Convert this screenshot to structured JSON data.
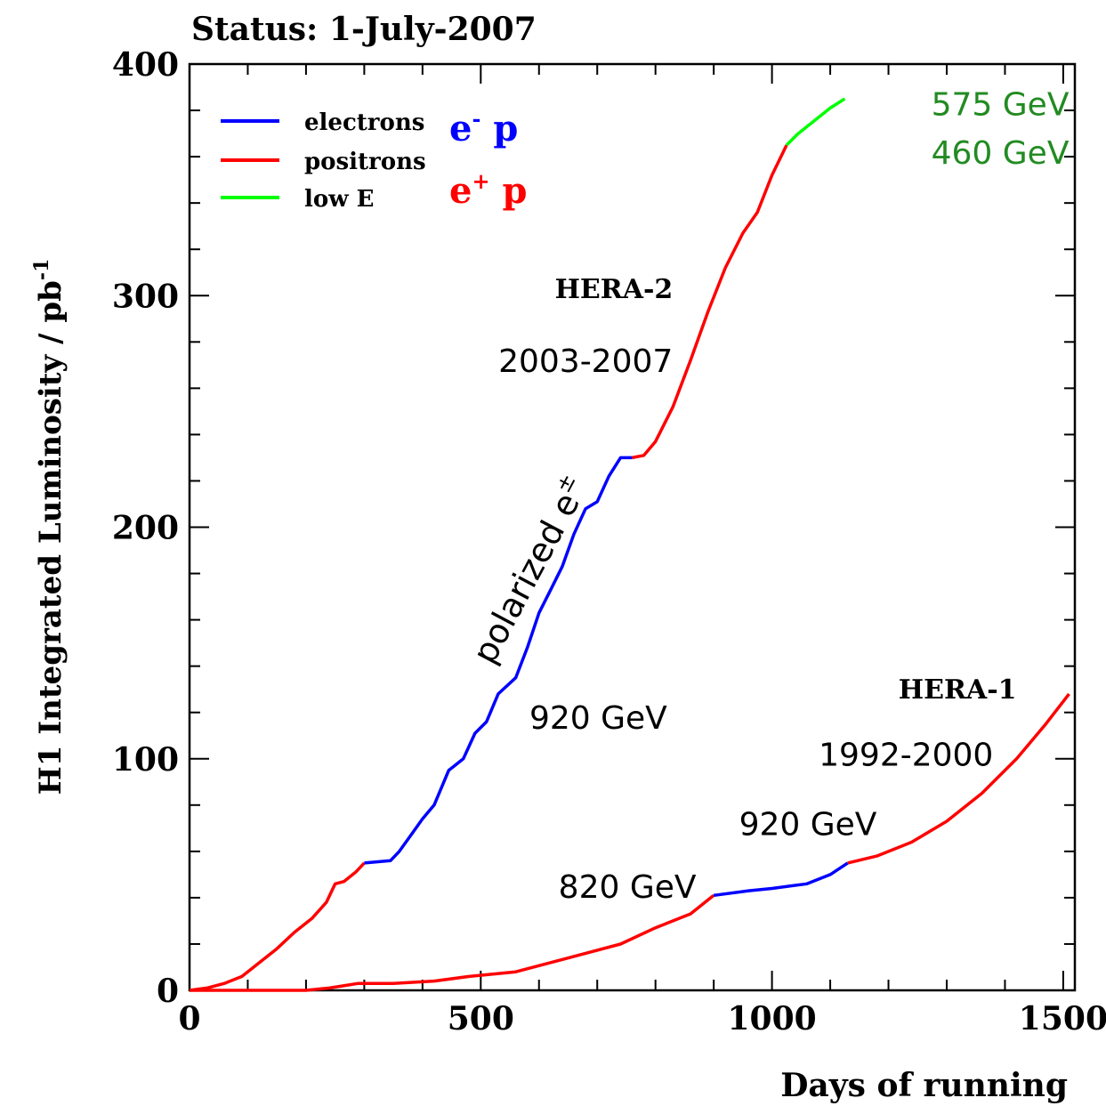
{
  "chart_data": {
    "type": "line",
    "status_text": "Status:  1-July-2007",
    "xlabel": "Days of running",
    "ylabel": "H1 Integrated Luminosity / pb",
    "ylabel_sup": "-1",
    "xlim": [
      0,
      1520
    ],
    "ylim": [
      0,
      400
    ],
    "x_ticks": [
      0,
      500,
      1000,
      1500
    ],
    "y_ticks": [
      0,
      100,
      200,
      300,
      400
    ],
    "x_minor_step": 100,
    "y_minor_step": 20,
    "colors": {
      "electrons": "#0000ff",
      "positrons": "#ff0000",
      "lowE": "#00ff00",
      "axis": "#000000",
      "green_text": "#228b22"
    },
    "legend": [
      {
        "label": "electrons",
        "color": "#0000ff"
      },
      {
        "label": "positrons",
        "color": "#ff0000"
      },
      {
        "label": "low E",
        "color": "#00ff00"
      }
    ],
    "legend_placement": "top-left",
    "legend_tags": [
      {
        "base": "e",
        "sup": "-",
        "suffix": " p",
        "color": "#0000ff"
      },
      {
        "base": "e",
        "sup": "+",
        "suffix": " p",
        "color": "#ff0000"
      }
    ],
    "series": [
      {
        "name": "HERA-2 positrons (early)",
        "color": "#ff0000",
        "points": [
          [
            0,
            0
          ],
          [
            30,
            1
          ],
          [
            60,
            3
          ],
          [
            90,
            6
          ],
          [
            120,
            12
          ],
          [
            150,
            18
          ],
          [
            180,
            25
          ],
          [
            210,
            31
          ],
          [
            235,
            38
          ],
          [
            250,
            46
          ],
          [
            265,
            47
          ],
          [
            285,
            51
          ],
          [
            300,
            55
          ]
        ]
      },
      {
        "name": "HERA-2 electrons",
        "color": "#0000ff",
        "points": [
          [
            300,
            55
          ],
          [
            345,
            56
          ],
          [
            360,
            60
          ],
          [
            380,
            67
          ],
          [
            400,
            74
          ],
          [
            420,
            80
          ],
          [
            445,
            95
          ],
          [
            470,
            100
          ],
          [
            490,
            111
          ],
          [
            510,
            116
          ],
          [
            530,
            128
          ],
          [
            560,
            135
          ],
          [
            580,
            148
          ],
          [
            600,
            163
          ],
          [
            620,
            173
          ],
          [
            640,
            183
          ],
          [
            660,
            197
          ],
          [
            680,
            208
          ],
          [
            700,
            211
          ],
          [
            720,
            222
          ],
          [
            740,
            230
          ],
          [
            760,
            230
          ]
        ]
      },
      {
        "name": "HERA-2 positrons",
        "color": "#ff0000",
        "points": [
          [
            760,
            230
          ],
          [
            780,
            231
          ],
          [
            800,
            237
          ],
          [
            830,
            252
          ],
          [
            860,
            272
          ],
          [
            890,
            293
          ],
          [
            920,
            312
          ],
          [
            950,
            327
          ],
          [
            975,
            336
          ],
          [
            1000,
            352
          ],
          [
            1025,
            365
          ]
        ]
      },
      {
        "name": "HERA-2 low E",
        "color": "#00ff00",
        "points": [
          [
            1025,
            365
          ],
          [
            1045,
            370
          ],
          [
            1070,
            375
          ],
          [
            1100,
            381
          ],
          [
            1125,
            385
          ]
        ]
      },
      {
        "name": "HERA-1 positrons (820 GeV)",
        "color": "#ff0000",
        "points": [
          [
            0,
            0
          ],
          [
            100,
            0
          ],
          [
            200,
            0
          ],
          [
            240,
            1
          ],
          [
            290,
            3
          ],
          [
            350,
            3
          ],
          [
            420,
            4
          ],
          [
            480,
            6
          ],
          [
            560,
            8
          ],
          [
            620,
            12
          ],
          [
            680,
            16
          ],
          [
            740,
            20
          ],
          [
            800,
            27
          ],
          [
            860,
            33
          ],
          [
            900,
            41
          ]
        ]
      },
      {
        "name": "HERA-1 electrons",
        "color": "#0000ff",
        "points": [
          [
            900,
            41
          ],
          [
            960,
            43
          ],
          [
            1000,
            44
          ],
          [
            1060,
            46
          ],
          [
            1100,
            50
          ],
          [
            1130,
            55
          ]
        ]
      },
      {
        "name": "HERA-1 positrons (920 GeV)",
        "color": "#ff0000",
        "points": [
          [
            1130,
            55
          ],
          [
            1180,
            58
          ],
          [
            1240,
            64
          ],
          [
            1300,
            73
          ],
          [
            1360,
            85
          ],
          [
            1420,
            100
          ],
          [
            1470,
            115
          ],
          [
            1510,
            128
          ]
        ]
      }
    ],
    "annotations": [
      {
        "text": "HERA-2",
        "x": 830,
        "y": 299,
        "font": "serif",
        "size": 30,
        "weight": "bold",
        "color": "#000000"
      },
      {
        "text": "2003-2007",
        "x": 830,
        "y": 267,
        "font": "sans",
        "size": 36,
        "weight": "normal",
        "color": "#000000"
      },
      {
        "text": "920 GeV",
        "x": 820,
        "y": 113,
        "font": "sans",
        "size": 36,
        "weight": "normal",
        "color": "#000000"
      },
      {
        "text": "HERA-1",
        "x": 1420,
        "y": 126,
        "font": "serif",
        "size": 30,
        "weight": "bold",
        "color": "#000000"
      },
      {
        "text": "1992-2000",
        "x": 1380,
        "y": 97,
        "font": "sans",
        "size": 36,
        "weight": "normal",
        "color": "#000000"
      },
      {
        "text": "920 GeV",
        "x": 1180,
        "y": 67,
        "font": "sans",
        "size": 36,
        "weight": "normal",
        "color": "#000000"
      },
      {
        "text": "820 GeV",
        "x": 870,
        "y": 40,
        "font": "sans",
        "size": 36,
        "weight": "normal",
        "color": "#000000"
      },
      {
        "text": "575 GeV",
        "x": 1510,
        "y": 378,
        "font": "sans",
        "size": 36,
        "weight": "normal",
        "color": "#228b22"
      },
      {
        "text": "460 GeV",
        "x": 1510,
        "y": 357,
        "font": "sans",
        "size": 36,
        "weight": "normal",
        "color": "#228b22"
      }
    ],
    "rotated_label": {
      "text": "polarized e",
      "sup": "±",
      "x": 520,
      "y": 140,
      "angle": -62,
      "size": 38
    }
  }
}
